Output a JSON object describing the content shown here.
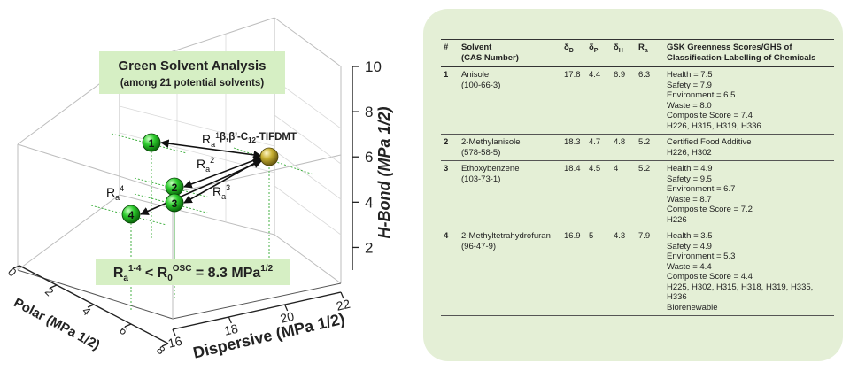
{
  "chart_data": {
    "type": "scatter3d",
    "title": "Green Solvent Analysis",
    "subtitle": "(among 21 potential solvents)",
    "xlabel": "Dispersive (MPa 1/2)",
    "ylabel": "Polar (MPa 1/2)",
    "zlabel": "H-Bond (MPa 1/2)",
    "xlim": [
      16,
      22
    ],
    "ylim": [
      0,
      8
    ],
    "zlim": [
      1,
      10
    ],
    "x_ticks": [
      "16",
      "18",
      "20",
      "22"
    ],
    "y_ticks": [
      "0",
      "2",
      "4",
      "6",
      "8"
    ],
    "z_ticks": [
      "2",
      "4",
      "6",
      "8",
      "10"
    ],
    "grid": true,
    "points": [
      {
        "label": "1",
        "x": 17.8,
        "y": 4.4,
        "z": 6.9,
        "color": "#2ecc2e"
      },
      {
        "label": "2",
        "x": 18.3,
        "y": 4.7,
        "z": 4.8,
        "color": "#2ecc2e"
      },
      {
        "label": "3",
        "x": 18.4,
        "y": 4.5,
        "z": 4.0,
        "color": "#2ecc2e"
      },
      {
        "label": "4",
        "x": 16.9,
        "y": 5.0,
        "z": 4.3,
        "color": "#2ecc2e"
      }
    ],
    "target": {
      "label": "β,β'-C12-TIFDMT",
      "color": "#c8b032"
    },
    "arrow_labels": [
      "Ra1",
      "Ra2",
      "Ra3",
      "Ra4"
    ],
    "equation": "Ra1-4 < R0OSC = 8.3 MPa1/2",
    "accent_colors": {
      "sphere": "#2ecc2e",
      "target": "#c8b032",
      "box": "#d6efc4",
      "dash": "#33aa33"
    }
  },
  "table": {
    "headers": {
      "num": "#",
      "solvent": "Solvent\n(CAS Number)",
      "dd": "δD",
      "dp": "δP",
      "dh": "δH",
      "ra": "Ra",
      "gsk": "GSK Greenness Scores/GHS of\nClassification-Labelling of Chemicals"
    },
    "rows": [
      {
        "num": "1",
        "name": "Anisole\n(100-66-3)",
        "dd": "17.8",
        "dp": "4.4",
        "dh": "6.9",
        "ra": "6.3",
        "gsk": "Health = 7.5\nSafety = 7.9\nEnvironment = 6.5\nWaste = 8.0\nComposite Score = 7.4\nH226, H315, H319, H336"
      },
      {
        "num": "2",
        "name": "2-Methylanisole\n(578-58-5)",
        "dd": "18.3",
        "dp": "4.7",
        "dh": "4.8",
        "ra": "5.2",
        "gsk": "Certified Food Additive\nH226, H302"
      },
      {
        "num": "3",
        "name": "Ethoxybenzene\n(103-73-1)",
        "dd": "18.4",
        "dp": "4.5",
        "dh": "4",
        "ra": "5.2",
        "gsk": "Health = 4.9\nSafety = 9.5\nEnvironment = 6.7\nWaste = 8.7\nComposite Score = 7.2\nH226"
      },
      {
        "num": "4",
        "name": "2-Methyltetrahydrofuran\n(96-47-9)",
        "dd": "16.9",
        "dp": "5",
        "dh": "4.3",
        "ra": "7.9",
        "gsk": "Health = 3.5\nSafety = 4.9\nEnvironment = 5.3\nWaste = 4.4\nComposite Score = 4.4\nH225, H302, H315, H318, H319, H335,\nH336\nBiorenewable"
      }
    ]
  }
}
